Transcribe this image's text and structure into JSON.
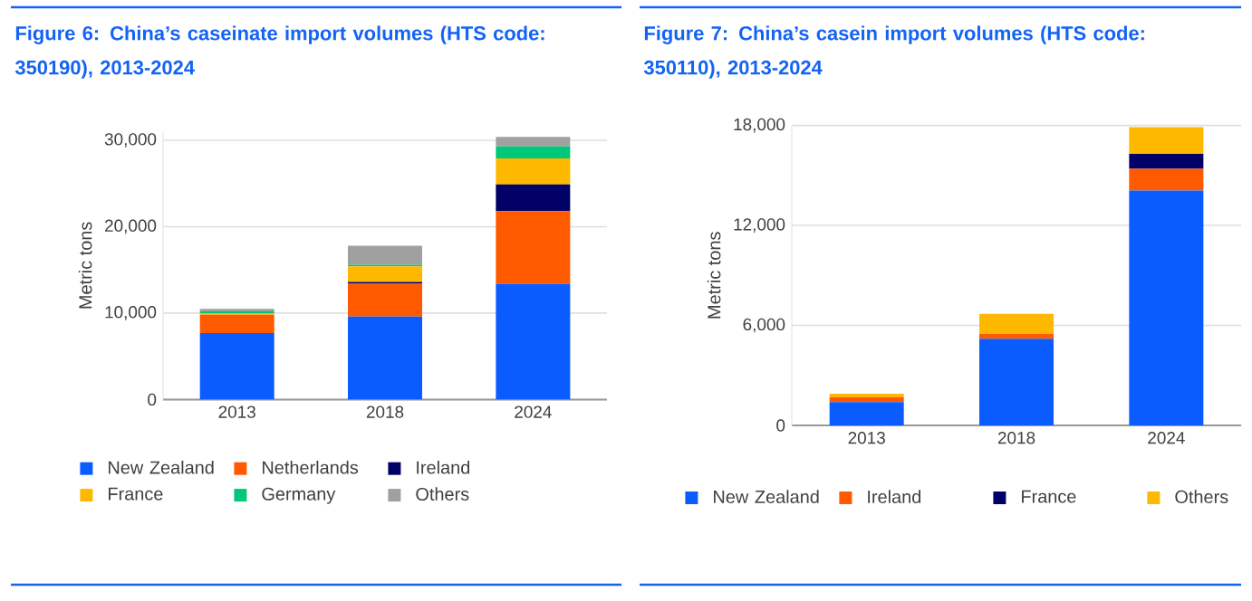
{
  "chart_data": [
    {
      "type": "bar",
      "title": "Figure 6: China’s caseinate import volumes (HTS code: 350190), 2013-2024",
      "ylabel": "Metric tons",
      "categories": [
        "2013",
        "2018",
        "2024"
      ],
      "stacked": true,
      "grid": "y",
      "legend": "bottom",
      "ylim": [
        0,
        31000
      ],
      "yticks": [
        0,
        {
          "value": 10000,
          "label": "10,000"
        },
        {
          "value": 20000,
          "label": "20,000"
        },
        {
          "value": 30000,
          "label": "30,000"
        }
      ],
      "series": [
        {
          "name": "New Zealand",
          "color": "#0a5cff",
          "values": [
            7700,
            9600,
            13400
          ]
        },
        {
          "name": "Netherlands",
          "color": "#ff5a00",
          "values": [
            2100,
            3800,
            8400
          ]
        },
        {
          "name": "Ireland",
          "color": "#000066",
          "values": [
            0,
            200,
            3100
          ]
        },
        {
          "name": "France",
          "color": "#ffb800",
          "values": [
            200,
            1800,
            3000
          ]
        },
        {
          "name": "Germany",
          "color": "#00c87a",
          "values": [
            200,
            200,
            1400
          ]
        },
        {
          "name": "Others",
          "color": "#a0a0a0",
          "values": [
            300,
            2200,
            1100
          ]
        }
      ]
    },
    {
      "type": "bar",
      "title": "Figure 7: China’s casein import volumes (HTS code: 350110), 2013-2024",
      "ylabel": "Metric tons",
      "categories": [
        "2013",
        "2018",
        "2024"
      ],
      "stacked": true,
      "grid": "y",
      "legend": "bottom",
      "ylim": [
        0,
        18000
      ],
      "yticks": [
        0,
        {
          "value": 6000,
          "label": "6,000"
        },
        {
          "value": 12000,
          "label": "12,000"
        },
        {
          "value": 18000,
          "label": "18,000"
        }
      ],
      "series": [
        {
          "name": "New Zealand",
          "color": "#0a5cff",
          "values": [
            1400,
            5200,
            14100
          ]
        },
        {
          "name": "Ireland",
          "color": "#ff5a00",
          "values": [
            300,
            300,
            1300
          ]
        },
        {
          "name": "France",
          "color": "#000066",
          "values": [
            0,
            0,
            900
          ]
        },
        {
          "name": "Others",
          "color": "#ffb800",
          "values": [
            200,
            1200,
            1600
          ]
        }
      ]
    }
  ]
}
